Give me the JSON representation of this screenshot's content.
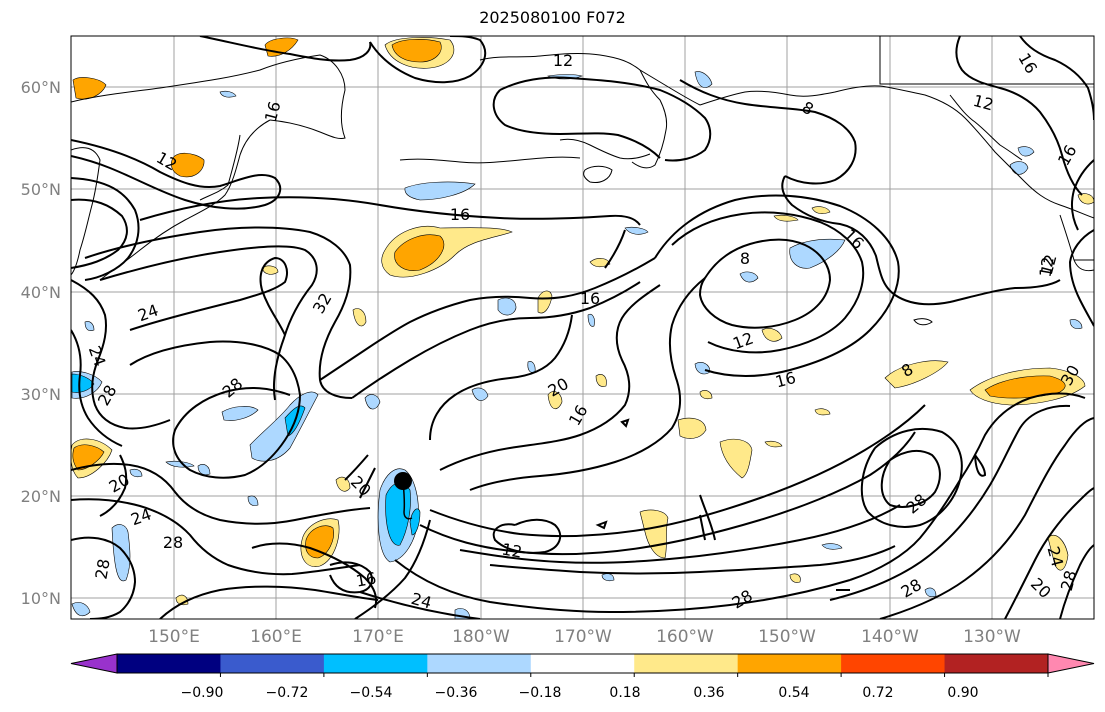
{
  "title": "2025080100 F072",
  "lat_labels": [
    "60°N",
    "50°N",
    "40°N",
    "30°N",
    "20°N",
    "10°N"
  ],
  "lon_labels": [
    "150°E",
    "160°E",
    "170°E",
    "180°W",
    "170°W",
    "160°W",
    "150°W",
    "140°W",
    "130°W"
  ],
  "contour_labels": [
    "12",
    "16",
    "16",
    "12",
    "12",
    "16",
    "8",
    "12",
    "8",
    "16",
    "24",
    "32",
    "16",
    "8",
    "16",
    "12",
    "24",
    "28",
    "20",
    "16",
    "30",
    "12",
    "28",
    "20",
    "24",
    "28",
    "28",
    "20",
    "16",
    "12",
    "24",
    "28",
    "28",
    "28",
    "24",
    "20",
    "28",
    "16"
  ],
  "colorbar": {
    "ticks": [
      "−0.90",
      "−0.72",
      "−0.54",
      "−0.36",
      "−0.18",
      "0.18",
      "0.36",
      "0.54",
      "0.72",
      "0.90"
    ],
    "colors": [
      "#9932cc",
      "#000080",
      "#3a5bcd",
      "#00bfff",
      "#add8ff",
      "#ffffff",
      "#ffe98a",
      "#ffa500",
      "#ff4500",
      "#b22222",
      "#ff88b0"
    ]
  }
}
